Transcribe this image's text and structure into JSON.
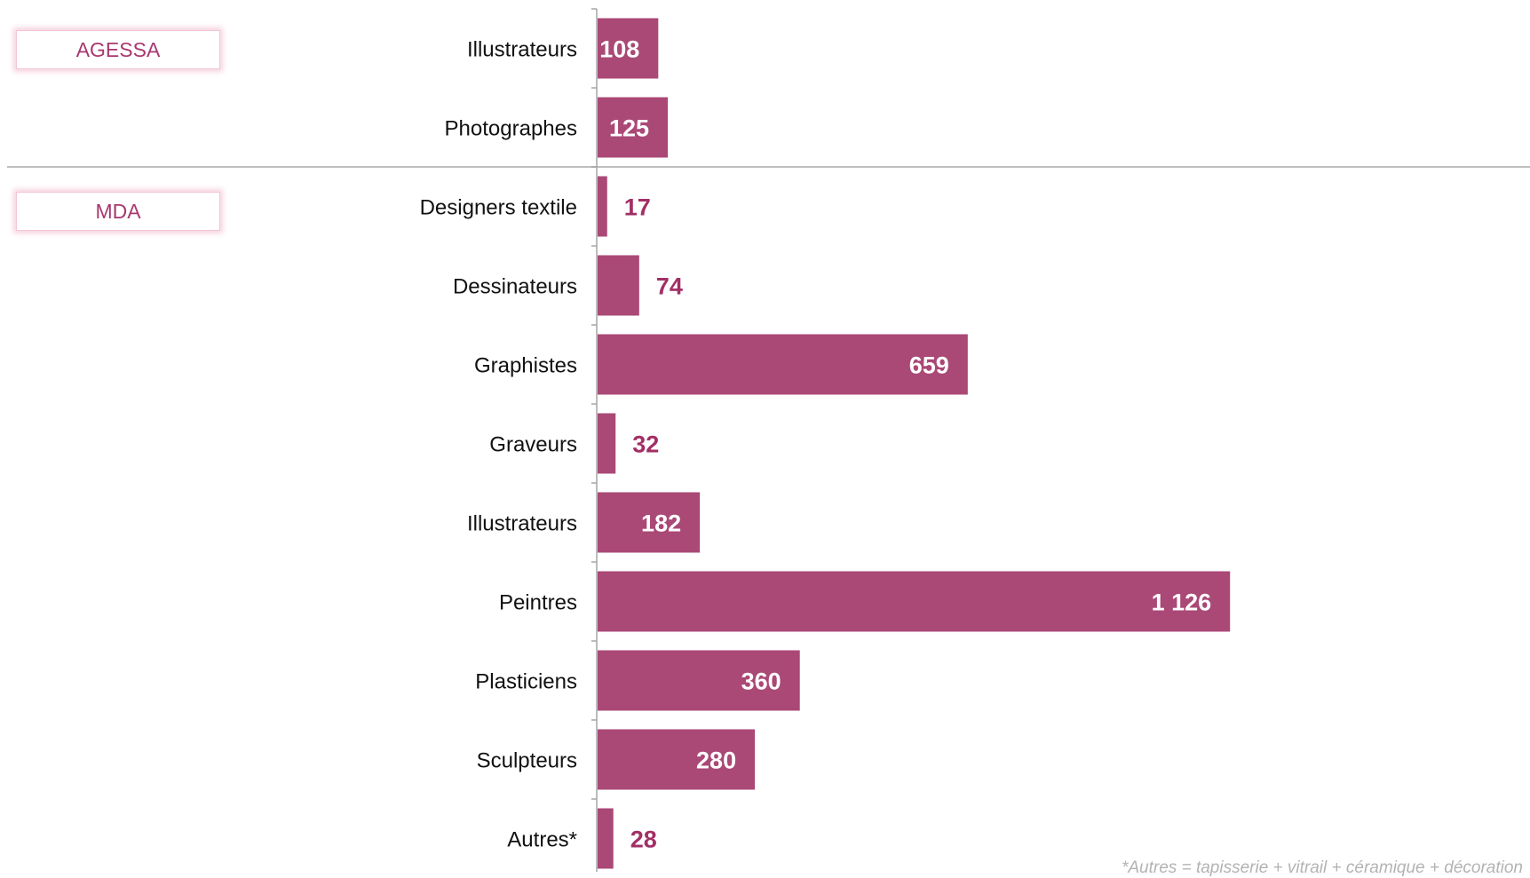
{
  "chart_data": {
    "type": "bar",
    "orientation": "horizontal",
    "groups": [
      {
        "label": "AGESSA",
        "categories": [
          "Illustrateurs",
          "Photographes"
        ],
        "values": [
          108,
          125
        ],
        "value_labels": [
          "108",
          "125"
        ]
      },
      {
        "label": "MDA",
        "categories": [
          "Designers textile",
          "Dessinateurs",
          "Graphistes",
          "Graveurs",
          "Illustrateurs",
          "Peintres",
          "Plasticiens",
          "Sculpteurs",
          "Autres*"
        ],
        "values": [
          17,
          74,
          659,
          32,
          182,
          1126,
          360,
          280,
          28
        ],
        "value_labels": [
          "17",
          "74",
          "659",
          "32",
          "182",
          "1 126",
          "360",
          "280",
          "28"
        ]
      }
    ],
    "xlim": [
      0,
      1250
    ],
    "grid": false,
    "legend": "none",
    "footnote": "*Autres = tapisserie + vitrail + céramique + décoration",
    "bar_color": "#aa4876",
    "label_color_outside": "#a22f66",
    "label_color_inside": "#ffffff",
    "divider_color": "#bfbfbf"
  }
}
